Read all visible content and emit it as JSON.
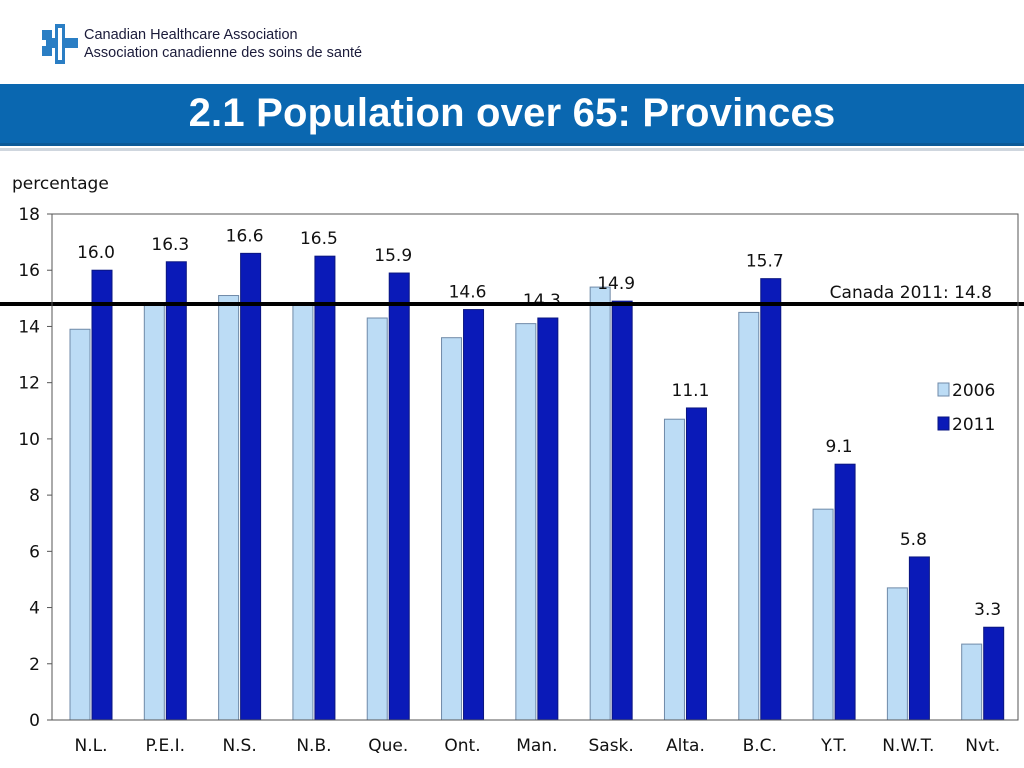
{
  "header": {
    "org_name_en": "Canadian Healthcare Association",
    "org_name_fr": "Association canadienne des soins de santé",
    "title": "2.1 Population over 65: Provinces"
  },
  "colors": {
    "band": "#0a67b0",
    "series_2006": "#bcdcf5",
    "series_2011": "#0a1ab8"
  },
  "chart_data": {
    "type": "bar",
    "ylabel": "percentage",
    "ylim": [
      0,
      18
    ],
    "yticks": [
      0,
      2,
      4,
      6,
      8,
      10,
      12,
      14,
      16,
      18
    ],
    "grid": false,
    "legend_position": "right",
    "categories": [
      "N.L.",
      "P.E.I.",
      "N.S.",
      "N.B.",
      "Que.",
      "Ont.",
      "Man.",
      "Sask.",
      "Alta.",
      "B.C.",
      "Y.T.",
      "N.W.T.",
      "Nvt."
    ],
    "series": [
      {
        "name": "2006",
        "values": [
          13.9,
          14.8,
          15.1,
          14.8,
          14.3,
          13.6,
          14.1,
          15.4,
          10.7,
          14.5,
          7.5,
          4.7,
          2.7
        ]
      },
      {
        "name": "2011",
        "values": [
          16.0,
          16.3,
          16.6,
          16.5,
          15.9,
          14.6,
          14.3,
          14.9,
          11.1,
          15.7,
          9.1,
          5.8,
          3.3
        ],
        "data_labels": [
          "16.0",
          "16.3",
          "16.6",
          "16.5",
          "15.9",
          "14.6",
          "14.3",
          "14.9",
          "11.1",
          "15.7",
          "9.1",
          "5.8",
          "3.3"
        ]
      }
    ],
    "reference_line": {
      "value": 14.8,
      "label": "Canada 2011: 14.8"
    }
  }
}
